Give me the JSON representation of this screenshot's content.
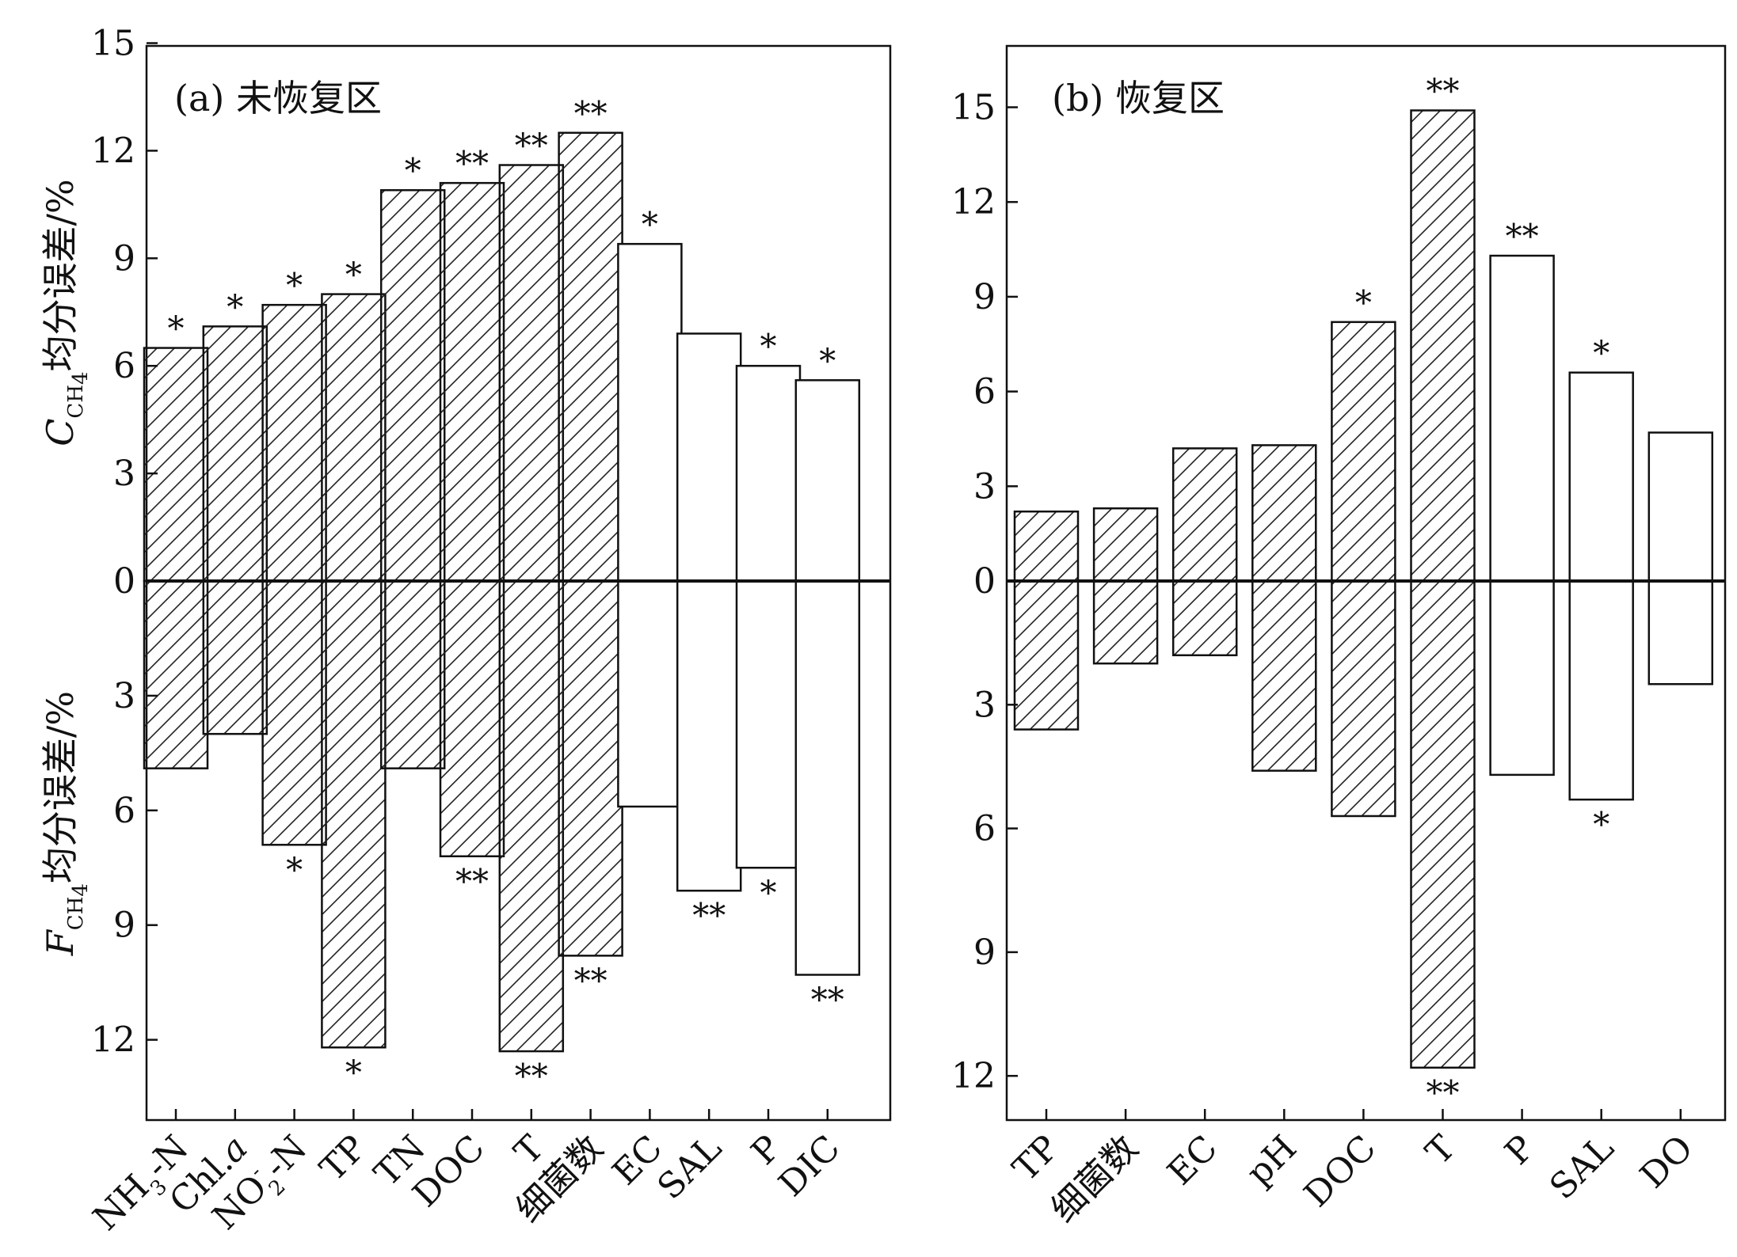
{
  "chart_data": [
    {
      "type": "bar",
      "panel": "a",
      "title": "(a) 未恢复区",
      "categories": [
        "NH3-N",
        "Chl.a",
        "NO2-N",
        "TP",
        "TN",
        "DOC",
        "T",
        "细菌数",
        "EC",
        "SAL",
        "P",
        "DIC"
      ],
      "category_display": [
        {
          "base": "NH",
          "sub": "3",
          "tail": "-N"
        },
        {
          "base": "Chl.",
          "italic": "a"
        },
        {
          "base": "NO",
          "sup": "-",
          "sub": "2",
          "tail": "-N"
        },
        {
          "base": "TP"
        },
        {
          "base": "TN"
        },
        {
          "base": "DOC"
        },
        {
          "base": "T"
        },
        {
          "base": "细菌数"
        },
        {
          "base": "EC"
        },
        {
          "base": "SAL"
        },
        {
          "base": "P"
        },
        {
          "base": "DIC"
        }
      ],
      "series": [
        {
          "name": "C_CH4 均分误差/%",
          "direction": "up",
          "values": [
            6.5,
            7.1,
            7.7,
            8.0,
            10.9,
            11.1,
            11.6,
            12.5,
            9.4,
            6.9,
            6.0,
            5.6
          ],
          "significance": [
            "*",
            "*",
            "*",
            "*",
            "*",
            "**",
            "**",
            "**",
            "*",
            "",
            "*",
            "*"
          ]
        },
        {
          "name": "F_CH4 均分误差/%",
          "direction": "down",
          "values": [
            4.9,
            4.0,
            6.9,
            12.2,
            4.9,
            7.2,
            12.3,
            9.8,
            5.9,
            8.1,
            7.5,
            10.3
          ],
          "significance": [
            "",
            "",
            "*",
            "*",
            "",
            "**",
            "**",
            "**",
            "",
            "**",
            "*",
            "**"
          ]
        }
      ],
      "hatched": [
        true,
        true,
        true,
        true,
        true,
        true,
        true,
        true,
        false,
        false,
        false,
        false
      ],
      "ylim_up": [
        0,
        15
      ],
      "ylim_down": [
        0,
        14
      ],
      "yticks_up": [
        "0",
        "3",
        "6",
        "9",
        "12",
        "15"
      ],
      "yticks_down": [
        "3",
        "6",
        "9",
        "12"
      ],
      "ylabel_up": {
        "var": "C",
        "sub": "CH",
        "subsub": "4",
        "text": "均分误差/%"
      },
      "ylabel_down": {
        "var": "F",
        "sub": "CH",
        "subsub": "4",
        "text": "均分误差/%"
      }
    },
    {
      "type": "bar",
      "panel": "b",
      "title": "(b) 恢复区",
      "categories": [
        "TP",
        "细菌数",
        "EC",
        "pH",
        "DOC",
        "T",
        "P",
        "SAL",
        "DO"
      ],
      "category_display": [
        {
          "base": "TP"
        },
        {
          "base": "细菌数"
        },
        {
          "base": "EC"
        },
        {
          "base": "pH"
        },
        {
          "base": "DOC"
        },
        {
          "base": "T"
        },
        {
          "base": "P"
        },
        {
          "base": "SAL"
        },
        {
          "base": "DO"
        }
      ],
      "series": [
        {
          "name": "C_CH4 均分误差/%",
          "direction": "up",
          "values": [
            2.2,
            2.3,
            4.2,
            4.3,
            8.2,
            14.9,
            10.3,
            6.6,
            4.7
          ],
          "significance": [
            "",
            "",
            "",
            "",
            "*",
            "**",
            "**",
            "*",
            ""
          ]
        },
        {
          "name": "F_CH4 均分误差/%",
          "direction": "down",
          "values": [
            3.6,
            2.0,
            1.8,
            4.6,
            5.7,
            11.8,
            4.7,
            5.3,
            2.5
          ],
          "significance": [
            "",
            "",
            "",
            "",
            "",
            "**",
            "",
            "*",
            ""
          ]
        }
      ],
      "hatched": [
        true,
        true,
        true,
        true,
        true,
        true,
        false,
        false,
        false
      ],
      "ylim_up": [
        0,
        17
      ],
      "ylim_down": [
        0,
        13
      ],
      "yticks_up": [
        "0",
        "3",
        "6",
        "9",
        "12",
        "15"
      ],
      "yticks_down": [
        "3",
        "6",
        "9",
        "12"
      ]
    }
  ]
}
